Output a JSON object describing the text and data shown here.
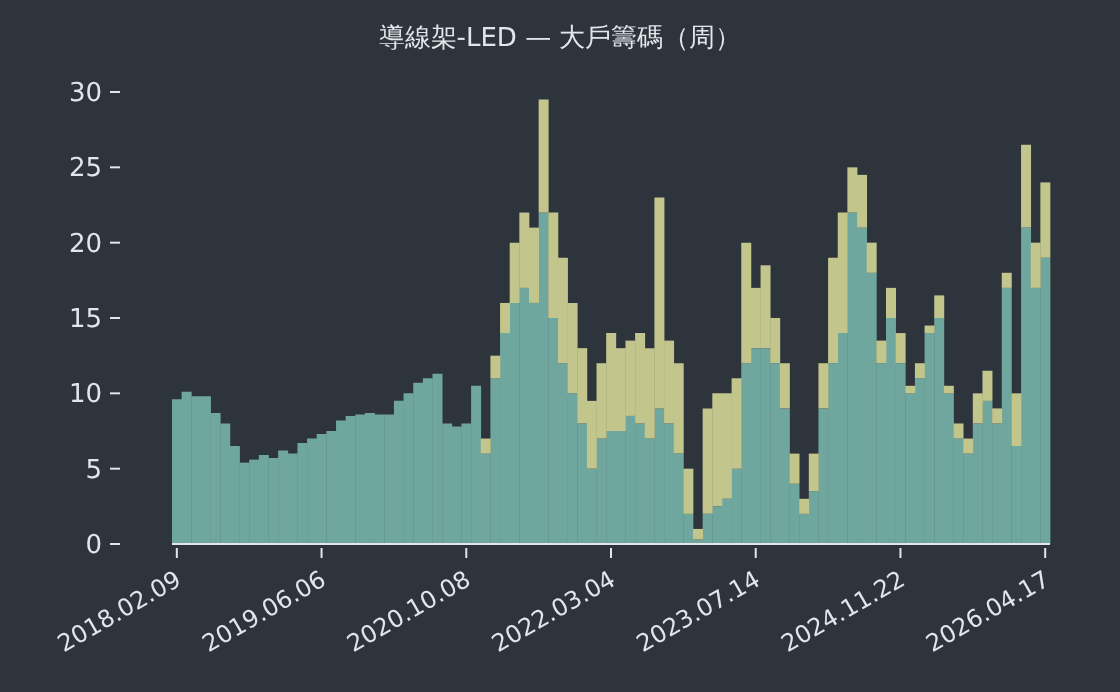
{
  "chart_data": {
    "type": "bar",
    "title": "導線架-LED — 大戶籌碼（周）",
    "stacked": true,
    "categories": [
      "2018.02.09",
      null,
      null,
      null,
      null,
      null,
      null,
      null,
      null,
      null,
      null,
      null,
      null,
      null,
      null,
      "2019.06.06",
      null,
      null,
      null,
      null,
      null,
      null,
      null,
      null,
      null,
      null,
      null,
      null,
      null,
      null,
      "2020.10.08",
      null,
      null,
      null,
      null,
      null,
      null,
      null,
      null,
      null,
      null,
      null,
      null,
      null,
      null,
      "2022.03.04",
      null,
      null,
      null,
      null,
      null,
      null,
      null,
      null,
      null,
      null,
      null,
      null,
      null,
      null,
      "2023.07.14",
      null,
      null,
      null,
      null,
      null,
      null,
      null,
      null,
      null,
      null,
      null,
      null,
      null,
      null,
      "2024.11.22",
      null,
      null,
      null,
      null,
      null,
      null,
      null,
      null,
      null,
      null,
      null,
      null,
      null,
      null,
      "2026.04.17"
    ],
    "series": [
      {
        "color": "#6fa69e",
        "values": [
          9.6,
          10.1,
          9.8,
          9.8,
          8.7,
          8,
          6.5,
          5.4,
          5.6,
          5.9,
          5.7,
          6.2,
          6,
          6.7,
          7,
          7.3,
          7.5,
          8.2,
          8.5,
          8.6,
          8.7,
          8.6,
          8.6,
          9.5,
          10,
          10.7,
          11,
          11.3,
          8,
          7.8,
          8,
          10.5,
          6,
          11,
          14,
          16,
          17,
          16,
          22,
          15,
          12,
          10,
          8,
          5,
          7,
          7.5,
          7.5,
          8.5,
          8,
          7,
          9,
          8,
          6,
          2,
          0.3,
          2,
          2.5,
          3,
          5,
          12,
          13,
          13,
          12,
          9,
          4,
          2,
          3.5,
          9,
          12,
          14,
          22,
          21,
          18,
          12,
          15,
          12,
          10,
          11,
          14,
          15,
          10,
          7,
          6,
          8,
          9.5,
          8,
          17,
          6.5,
          21,
          17,
          19
        ]
      },
      {
        "color": "#c2c58c",
        "values": [
          null,
          null,
          null,
          null,
          null,
          null,
          null,
          null,
          null,
          null,
          null,
          null,
          null,
          null,
          null,
          null,
          null,
          null,
          null,
          null,
          null,
          null,
          null,
          null,
          null,
          null,
          null,
          null,
          null,
          null,
          null,
          null,
          1,
          1.5,
          2,
          4,
          5,
          5,
          7.5,
          7,
          7,
          6,
          5,
          4.5,
          5,
          6.5,
          5.5,
          5,
          6,
          6,
          14,
          5.5,
          6,
          3,
          0.7,
          7,
          7.5,
          7,
          6,
          8,
          4,
          5.5,
          3,
          3,
          2,
          1,
          2.5,
          3,
          7,
          8,
          3,
          3.5,
          2,
          1.5,
          2,
          2,
          0.5,
          1,
          0.5,
          1.5,
          0.5,
          1,
          1,
          2,
          2,
          1,
          1,
          3.5,
          5.5,
          3,
          5
        ]
      }
    ],
    "ylim": [
      0,
      30
    ],
    "yticks": [
      0,
      5,
      10,
      15,
      20,
      25,
      30
    ]
  }
}
